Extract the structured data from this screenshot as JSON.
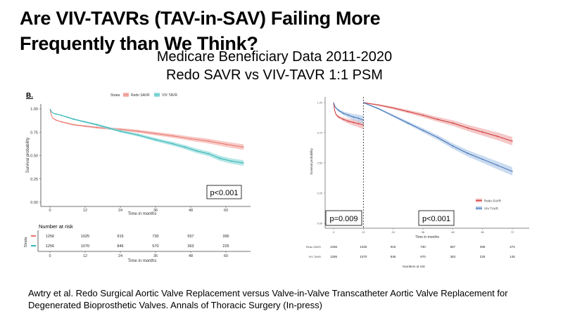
{
  "slide": {
    "title_line1": "Are VIV-TAVRs (TAV-in-SAV) Failing More",
    "title_line2": "Frequently than We Think?",
    "subtitle_line1": "Medicare Beneficiary Data 2011-2020",
    "subtitle_line2": "Redo SAVR vs VIV-TAVR 1:1 PSM",
    "citation_line1": "Awtry et al. Redo Surgical Aortic Valve Replacement versus Valve-in-Valve Transcatheter Aortic Valve Replacement for",
    "citation_line2": "Degenerated Bioprosthetic Valves. Annals of Thoracic Surgery (In-press)"
  },
  "chart_data": [
    {
      "type": "line",
      "panel_label": "B.",
      "title": "",
      "xlabel": "Time in months",
      "ylabel": "Survival probability",
      "xlim": [
        0,
        68
      ],
      "ylim": [
        0,
        1
      ],
      "x_ticks": [
        0,
        12,
        24,
        36,
        48,
        60
      ],
      "y_ticks": [
        0.0,
        0.25,
        0.5,
        0.75,
        1.0
      ],
      "y_tick_labels": [
        "0.00",
        "0.25",
        "0.50",
        "0.75",
        "1.00"
      ],
      "legend": {
        "title": "Strata",
        "position": "top",
        "entries": [
          "Redo SAVR",
          "VIV TAVR"
        ]
      },
      "annotation": "p<0.001",
      "series": [
        {
          "name": "Redo SAVR",
          "color": "#e8736b",
          "band_color": "#f4b8b3",
          "x": [
            0,
            0.5,
            1,
            2,
            4,
            6,
            8,
            12,
            16,
            20,
            24,
            30,
            36,
            42,
            48,
            54,
            60,
            66
          ],
          "values": [
            1.0,
            0.93,
            0.9,
            0.88,
            0.86,
            0.845,
            0.83,
            0.815,
            0.8,
            0.79,
            0.78,
            0.76,
            0.735,
            0.71,
            0.68,
            0.655,
            0.62,
            0.59
          ]
        },
        {
          "name": "VIV TAVR",
          "color": "#2cb5b5",
          "band_color": "#9fdede",
          "x": [
            0,
            0.5,
            1,
            2,
            4,
            6,
            8,
            12,
            16,
            20,
            24,
            30,
            36,
            42,
            46,
            50,
            54,
            58,
            62,
            66
          ],
          "values": [
            1.0,
            0.97,
            0.955,
            0.945,
            0.93,
            0.91,
            0.89,
            0.86,
            0.83,
            0.795,
            0.76,
            0.72,
            0.67,
            0.625,
            0.59,
            0.55,
            0.52,
            0.47,
            0.44,
            0.42
          ]
        }
      ],
      "risk_table": {
        "title": "Number at risk",
        "ylabel": "Strata",
        "xlabel": "Time in months",
        "times": [
          0,
          12,
          24,
          36,
          48,
          60
        ],
        "rows": [
          {
            "name": "Redo SAVR",
            "color": "#e8736b",
            "values": [
              "1256",
              "1025",
              "915",
              "730",
              "557",
              "395"
            ]
          },
          {
            "name": "VIV TAVR",
            "color": "#2cb5b5",
            "values": [
              "1256",
              "1070",
              "846",
              "570",
              "363",
              "225"
            ]
          }
        ]
      }
    },
    {
      "type": "line",
      "title": "",
      "xlabel": "Time in months",
      "ylabel": "Survival probability",
      "xlim": [
        0,
        75
      ],
      "ylim": [
        0,
        1
      ],
      "x_ticks": [
        0,
        12,
        24,
        36,
        48,
        60,
        72
      ],
      "y_ticks": [
        0.0,
        0.25,
        0.5,
        0.75,
        1.0
      ],
      "y_tick_labels": [
        "0.00",
        "0.25",
        "0.50",
        "0.75",
        "1.00"
      ],
      "landmark_month": 12,
      "legend": {
        "position": "bottom-right",
        "entries": [
          "Redo SAVR",
          "VIV TAVR"
        ]
      },
      "annotations": [
        "p=0.009",
        "p<0.001"
      ],
      "series": [
        {
          "name": "Redo SAVR",
          "segment": "0-12 months",
          "color": "#cc3333",
          "band_color": "#f2b5b5",
          "x": [
            0,
            0.5,
            1,
            2,
            4,
            6,
            8,
            10,
            12
          ],
          "values": [
            1.0,
            0.93,
            0.9,
            0.88,
            0.86,
            0.845,
            0.835,
            0.825,
            0.815
          ]
        },
        {
          "name": "VIV TAVR",
          "segment": "0-12 months",
          "color": "#3a6fb5",
          "band_color": "#b9cfea",
          "x": [
            0,
            0.5,
            1,
            2,
            4,
            6,
            8,
            10,
            12
          ],
          "values": [
            1.0,
            0.97,
            0.955,
            0.935,
            0.91,
            0.895,
            0.88,
            0.87,
            0.855
          ]
        },
        {
          "name": "Redo SAVR",
          "segment": "12+ months (conditional)",
          "color": "#cc3333",
          "band_color": "#f2b5b5",
          "x": [
            12,
            18,
            24,
            30,
            36,
            42,
            48,
            54,
            60,
            66,
            72
          ],
          "values": [
            1.0,
            0.98,
            0.955,
            0.925,
            0.895,
            0.86,
            0.83,
            0.79,
            0.755,
            0.72,
            0.68
          ]
        },
        {
          "name": "VIV TAVR",
          "segment": "12+ months (conditional)",
          "color": "#3a6fb5",
          "band_color": "#b9cfea",
          "x": [
            12,
            18,
            24,
            30,
            36,
            42,
            48,
            54,
            60,
            66,
            72
          ],
          "values": [
            1.0,
            0.95,
            0.89,
            0.83,
            0.77,
            0.71,
            0.64,
            0.58,
            0.53,
            0.48,
            0.43
          ]
        }
      ],
      "risk_table": {
        "title": "Numbers at risk",
        "times": [
          0,
          12,
          24,
          36,
          48,
          60,
          72
        ],
        "rows": [
          {
            "name": "Redo SAVR",
            "values": [
              "1256",
              "1025",
              "915",
              "730",
              "557",
              "395",
              "272"
            ]
          },
          {
            "name": "VIV TAVR",
            "values": [
              "1256",
              "1070",
              "846",
              "570",
              "363",
              "225",
              "145"
            ]
          }
        ]
      }
    }
  ]
}
